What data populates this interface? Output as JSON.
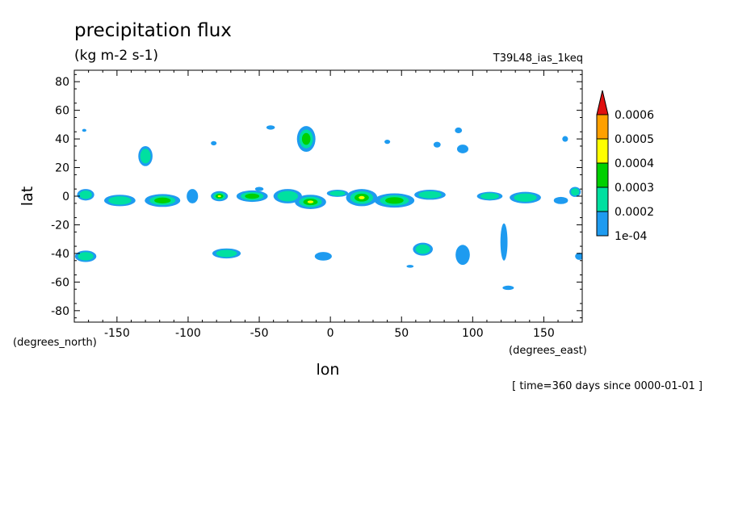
{
  "chart_data": {
    "type": "heatmap",
    "title": "precipitation flux",
    "units": "(kg m-2 s-1)",
    "dataset": "T39L48_ias_1keq",
    "xlabel": "lon",
    "ylabel": "lat",
    "x_units": "(degrees_east)",
    "y_units": "(degrees_north)",
    "xlim": [
      -180,
      177
    ],
    "ylim": [
      -88,
      88
    ],
    "x_ticks": [
      -150,
      -100,
      -50,
      0,
      50,
      100,
      150
    ],
    "y_ticks": [
      80,
      60,
      40,
      20,
      0,
      -20,
      -40,
      -60,
      -80
    ],
    "time_note": "[ time=360 days since 0000-01-01 ]",
    "colorbar": {
      "levels": [
        "1e-04",
        "0.0002",
        "0.0003",
        "0.0004",
        "0.0005",
        "0.0006"
      ],
      "colors": [
        "#1e9bf0",
        "#00e0a0",
        "#00d000",
        "#ffff00",
        "#ffa000",
        "#e01010"
      ]
    },
    "regions": [
      {
        "lon": -130,
        "lat": 28,
        "w": 10,
        "h": 14,
        "level": 2
      },
      {
        "lon": -17,
        "lat": 40,
        "w": 13,
        "h": 18,
        "level": 3
      },
      {
        "lon": -173,
        "lat": 46,
        "w": 3,
        "h": 2,
        "level": 1
      },
      {
        "lon": -42,
        "lat": 48,
        "w": 6,
        "h": 3,
        "level": 1
      },
      {
        "lon": -50,
        "lat": 5,
        "w": 6,
        "h": 3,
        "level": 1
      },
      {
        "lon": 90,
        "lat": 46,
        "w": 5,
        "h": 4,
        "level": 1
      },
      {
        "lon": 93,
        "lat": 33,
        "w": 8,
        "h": 6,
        "level": 1
      },
      {
        "lon": 75,
        "lat": 36,
        "w": 5,
        "h": 4,
        "level": 1
      },
      {
        "lon": 165,
        "lat": 40,
        "w": 4,
        "h": 4,
        "level": 1
      },
      {
        "lon": -82,
        "lat": 37,
        "w": 4,
        "h": 3,
        "level": 1
      },
      {
        "lon": 40,
        "lat": 38,
        "w": 4,
        "h": 3,
        "level": 1
      },
      {
        "lon": -172,
        "lat": 1,
        "w": 12,
        "h": 8,
        "level": 2
      },
      {
        "lon": -148,
        "lat": -3,
        "w": 22,
        "h": 8,
        "level": 2
      },
      {
        "lon": -118,
        "lat": -3,
        "w": 25,
        "h": 9,
        "level": 3
      },
      {
        "lon": -97,
        "lat": 0,
        "w": 8,
        "h": 10,
        "level": 1
      },
      {
        "lon": -78,
        "lat": 0,
        "w": 12,
        "h": 7,
        "level": 5
      },
      {
        "lon": -55,
        "lat": 0,
        "w": 22,
        "h": 8,
        "level": 3
      },
      {
        "lon": -30,
        "lat": 0,
        "w": 20,
        "h": 10,
        "level": 2
      },
      {
        "lon": -14,
        "lat": -4,
        "w": 22,
        "h": 10,
        "level": 5
      },
      {
        "lon": 5,
        "lat": 2,
        "w": 15,
        "h": 5,
        "level": 2
      },
      {
        "lon": 22,
        "lat": -1,
        "w": 22,
        "h": 12,
        "level": 5
      },
      {
        "lon": 45,
        "lat": -3,
        "w": 28,
        "h": 10,
        "level": 3
      },
      {
        "lon": 70,
        "lat": 1,
        "w": 22,
        "h": 7,
        "level": 2
      },
      {
        "lon": 112,
        "lat": 0,
        "w": 18,
        "h": 6,
        "level": 2
      },
      {
        "lon": 137,
        "lat": -1,
        "w": 22,
        "h": 8,
        "level": 2
      },
      {
        "lon": 162,
        "lat": -3,
        "w": 10,
        "h": 5,
        "level": 1
      },
      {
        "lon": 172,
        "lat": 3,
        "w": 8,
        "h": 7,
        "level": 2
      },
      {
        "lon": -172,
        "lat": -42,
        "w": 15,
        "h": 8,
        "level": 2
      },
      {
        "lon": -73,
        "lat": -40,
        "w": 20,
        "h": 7,
        "level": 2
      },
      {
        "lon": 65,
        "lat": -37,
        "w": 14,
        "h": 9,
        "level": 2
      },
      {
        "lon": 93,
        "lat": -41,
        "w": 10,
        "h": 14,
        "level": 1
      },
      {
        "lon": 122,
        "lat": -32,
        "w": 5,
        "h": 26,
        "level": 1
      },
      {
        "lon": -5,
        "lat": -42,
        "w": 12,
        "h": 6,
        "level": 1
      },
      {
        "lon": 125,
        "lat": -64,
        "w": 8,
        "h": 3,
        "level": 1
      },
      {
        "lon": 56,
        "lat": -49,
        "w": 5,
        "h": 2,
        "level": 1
      },
      {
        "lon": 175,
        "lat": -42,
        "w": 6,
        "h": 5,
        "level": 1
      }
    ]
  }
}
